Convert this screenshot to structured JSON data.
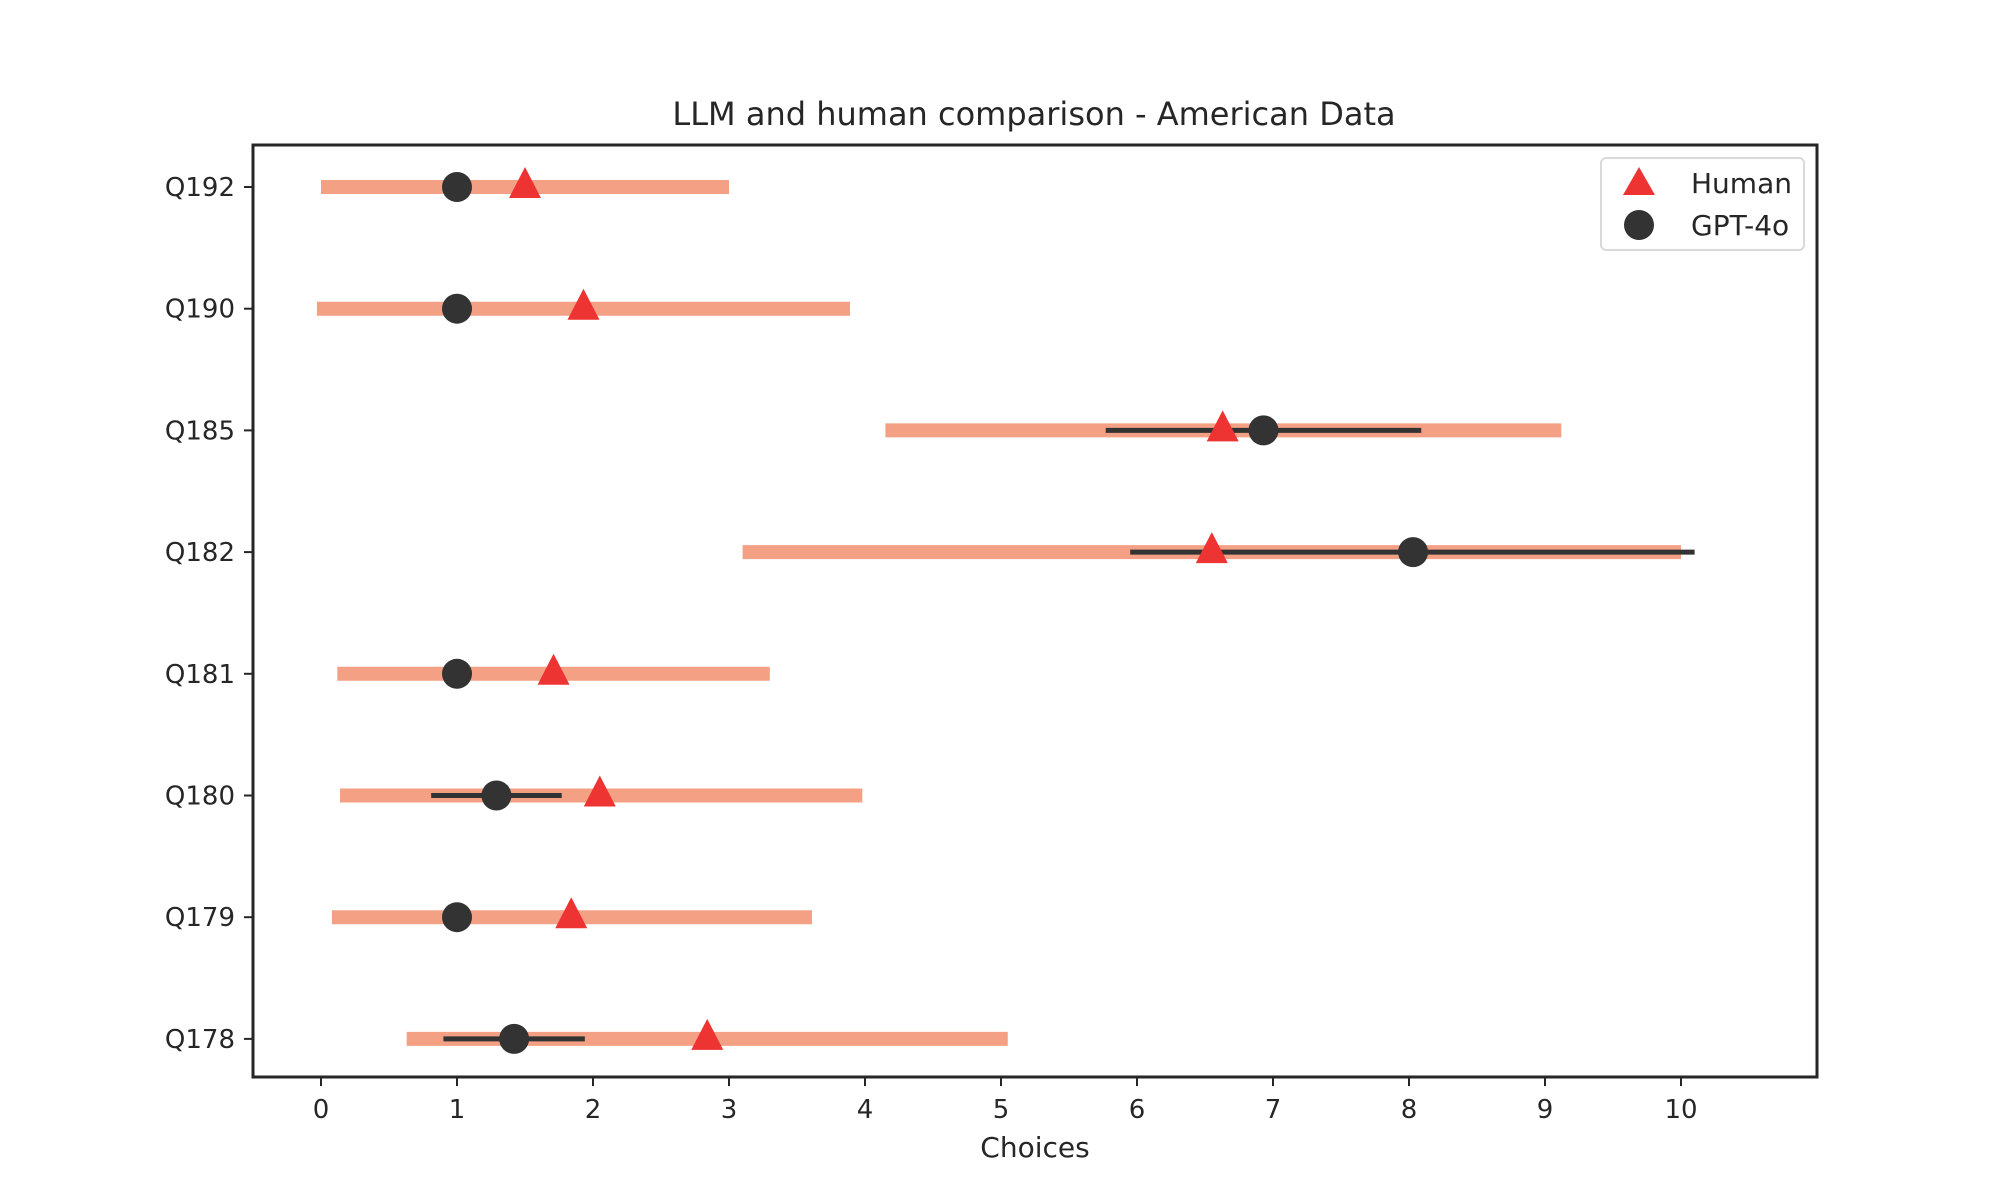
{
  "chart_data": {
    "type": "scatter",
    "title": "LLM and human comparison - American Data",
    "xlabel": "Choices",
    "ylabel": "",
    "xlim": [
      -0.5,
      11
    ],
    "xticks": [
      0,
      1,
      2,
      3,
      4,
      5,
      6,
      7,
      8,
      9,
      10
    ],
    "categories": [
      "Q192",
      "Q190",
      "Q185",
      "Q182",
      "Q181",
      "Q180",
      "Q179",
      "Q178"
    ],
    "series": [
      {
        "name": "Human",
        "marker": "triangle",
        "color": "#ee3333",
        "errorbar_color": "#f4a085",
        "values": [
          1.5,
          1.93,
          6.63,
          6.55,
          1.71,
          2.05,
          1.84,
          2.84
        ],
        "err_low": [
          0.0,
          -0.03,
          4.15,
          3.1,
          0.12,
          0.14,
          0.08,
          0.63
        ],
        "err_high": [
          3.0,
          3.89,
          9.12,
          10.0,
          3.3,
          3.98,
          3.61,
          5.05
        ]
      },
      {
        "name": "GPT-4o",
        "marker": "circle",
        "color": "#333333",
        "errorbar_color": "#333333",
        "values": [
          1.0,
          1.0,
          6.93,
          8.03,
          1.0,
          1.29,
          1.0,
          1.42
        ],
        "err_low": [
          1.0,
          0.9,
          5.77,
          5.95,
          1.0,
          0.81,
          1.0,
          0.9
        ],
        "err_high": [
          1.0,
          1.1,
          8.09,
          10.1,
          1.0,
          1.77,
          1.0,
          1.94
        ]
      }
    ],
    "legend": {
      "position": "top-right",
      "entries": [
        "Human",
        "GPT-4o"
      ]
    }
  }
}
